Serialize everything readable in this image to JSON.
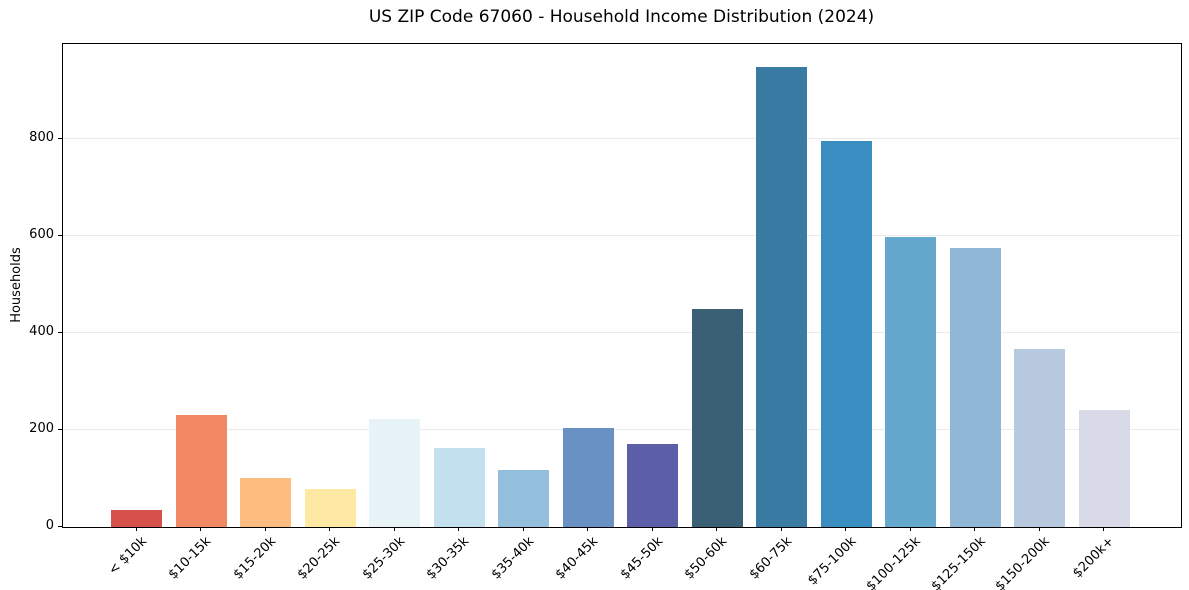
{
  "chart_data": {
    "type": "bar",
    "title": "US ZIP Code 67060 - Household Income Distribution (2024)",
    "xlabel": "",
    "ylabel": "Households",
    "categories": [
      "< $10k",
      "$10-15k",
      "$15-20k",
      "$20-25k",
      "$25-30k",
      "$30-35k",
      "$35-40k",
      "$40-45k",
      "$45-50k",
      "$50-60k",
      "$60-75k",
      "$75-100k",
      "$100-125k",
      "$125-150k",
      "$150-200k",
      "$200k+"
    ],
    "values": [
      36,
      230,
      100,
      79,
      222,
      163,
      118,
      203,
      170,
      450,
      947,
      796,
      597,
      574,
      367,
      242
    ],
    "bar_colors": [
      "#d6504c",
      "#f28965",
      "#fcbd7e",
      "#fde8a4",
      "#e7f3f6",
      "#c2e0ee",
      "#93bedc",
      "#6a91c3",
      "#5c5fa8",
      "#396075",
      "#3a7ba4",
      "#3a8dc0",
      "#64a9cd",
      "#91b7d7",
      "#b7c9df",
      "#d8dae8"
    ],
    "ylim": [
      0,
      995
    ],
    "yticks": [
      0,
      200,
      400,
      600,
      800
    ],
    "grid": "horizontal",
    "legend_position": "none"
  },
  "colors": {
    "background": "#ffffff",
    "spine": "#000000",
    "grid": "#ebebeb",
    "text": "#000000"
  }
}
